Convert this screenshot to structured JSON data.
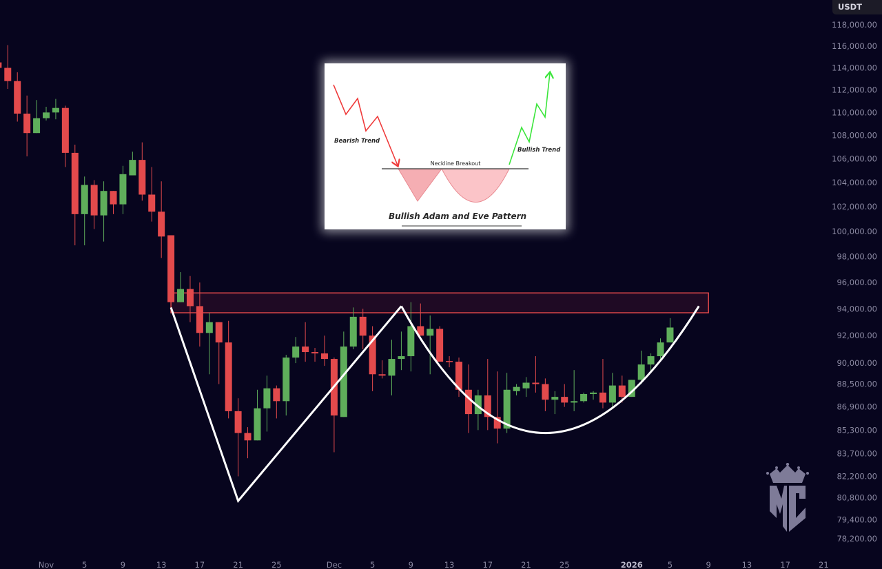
{
  "quote_currency": "USDT",
  "colors": {
    "background": "#07051e",
    "up": "#5fae5b",
    "down": "#e34a4c",
    "zone_border": "#e0484a",
    "zone_fill": "#1f0a24",
    "pattern_line": "#ffffff",
    "axis_text": "#8c8aa3",
    "logo": "#7e7b98"
  },
  "chart_data": {
    "type": "candlestick",
    "interval": "1D",
    "y_scale": "log",
    "ylim": [
      77500,
      119000
    ],
    "columns": [
      "date",
      "open",
      "high",
      "low",
      "close"
    ],
    "candles": [
      [
        "2025-10-27",
        114500,
        114600,
        113900,
        114000
      ],
      [
        "2025-10-28",
        114000,
        116100,
        112100,
        112800
      ],
      [
        "2025-10-29",
        112800,
        113600,
        109200,
        109900
      ],
      [
        "2025-10-30",
        109900,
        111500,
        106200,
        108200
      ],
      [
        "2025-10-31",
        108200,
        111100,
        108200,
        109500
      ],
      [
        "2025-11-01",
        109500,
        110500,
        109300,
        110000
      ],
      [
        "2025-11-02",
        110000,
        111200,
        109400,
        110400
      ],
      [
        "2025-11-03",
        110400,
        110600,
        105300,
        106500
      ],
      [
        "2025-11-04",
        106500,
        107200,
        98900,
        101400
      ],
      [
        "2025-11-05",
        101400,
        104500,
        98900,
        103800
      ],
      [
        "2025-11-06",
        103800,
        104200,
        100200,
        101300
      ],
      [
        "2025-11-07",
        101300,
        104100,
        99200,
        103300
      ],
      [
        "2025-11-08",
        103300,
        103300,
        101400,
        102200
      ],
      [
        "2025-11-09",
        102200,
        105400,
        101400,
        104700
      ],
      [
        "2025-11-10",
        104600,
        106600,
        104900,
        105900
      ],
      [
        "2025-11-11",
        105900,
        107400,
        102500,
        103000
      ],
      [
        "2025-11-12",
        103000,
        105300,
        100800,
        101600
      ],
      [
        "2025-11-13",
        101600,
        104100,
        97900,
        99600
      ],
      [
        "2025-11-14",
        99700,
        99700,
        94400,
        94500
      ],
      [
        "2025-11-15",
        94500,
        96800,
        94500,
        95500
      ],
      [
        "2025-11-16",
        95500,
        96500,
        93000,
        94200
      ],
      [
        "2025-11-17",
        94200,
        96000,
        91200,
        92200
      ],
      [
        "2025-11-18",
        92200,
        93700,
        89200,
        93000
      ],
      [
        "2025-11-19",
        93000,
        93000,
        88500,
        91500
      ],
      [
        "2025-11-20",
        91500,
        93100,
        86100,
        86600
      ],
      [
        "2025-11-21",
        86600,
        87500,
        82200,
        85100
      ],
      [
        "2025-11-22",
        85100,
        85500,
        83400,
        84600
      ],
      [
        "2025-11-23",
        84600,
        88100,
        84600,
        86800
      ],
      [
        "2025-11-24",
        86800,
        89100,
        85200,
        88200
      ],
      [
        "2025-11-25",
        88200,
        88400,
        86100,
        87300
      ],
      [
        "2025-11-26",
        87300,
        90600,
        86300,
        90400
      ],
      [
        "2025-11-27",
        90400,
        91900,
        90000,
        91200
      ],
      [
        "2025-11-28",
        91200,
        93000,
        90100,
        90800
      ],
      [
        "2025-11-29",
        90800,
        91100,
        90100,
        90700
      ],
      [
        "2025-11-30",
        90700,
        92000,
        89800,
        90300
      ],
      [
        "2025-12-01",
        90300,
        90400,
        83800,
        86300
      ],
      [
        "2025-12-02",
        86200,
        92300,
        86200,
        91200
      ],
      [
        "2025-12-03",
        91200,
        94100,
        91000,
        93400
      ],
      [
        "2025-12-04",
        93400,
        94000,
        91000,
        92000
      ],
      [
        "2025-12-05",
        92000,
        92700,
        88000,
        89200
      ],
      [
        "2025-12-06",
        89200,
        90200,
        88900,
        89100
      ],
      [
        "2025-12-07",
        89100,
        91700,
        87700,
        90300
      ],
      [
        "2025-12-08",
        90300,
        92300,
        89500,
        90500
      ],
      [
        "2025-12-09",
        90500,
        94500,
        89400,
        92700
      ],
      [
        "2025-12-10",
        92700,
        94400,
        92000,
        92000
      ],
      [
        "2025-12-11",
        92000,
        93500,
        89200,
        92500
      ],
      [
        "2025-12-12",
        92500,
        92700,
        90100,
        90100
      ],
      [
        "2025-12-13",
        90150,
        90500,
        89700,
        90100
      ],
      [
        "2025-12-14",
        90100,
        90400,
        87600,
        88100
      ],
      [
        "2025-12-15",
        88100,
        89900,
        85100,
        86400
      ],
      [
        "2025-12-16",
        86400,
        88100,
        85300,
        87700
      ],
      [
        "2025-12-17",
        87700,
        90300,
        85300,
        86200
      ],
      [
        "2025-12-18",
        86200,
        89400,
        84400,
        85400
      ],
      [
        "2025-12-19",
        85400,
        89300,
        85100,
        88100
      ],
      [
        "2025-12-20",
        88000,
        88500,
        87700,
        88300
      ],
      [
        "2025-12-21",
        88200,
        89000,
        87600,
        88600
      ],
      [
        "2025-12-22",
        88600,
        90500,
        87900,
        88500
      ],
      [
        "2025-12-23",
        88500,
        88900,
        86600,
        87400
      ],
      [
        "2025-12-24",
        87400,
        88000,
        86400,
        87600
      ],
      [
        "2025-12-25",
        87600,
        88500,
        86900,
        87200
      ],
      [
        "2025-12-26",
        87200,
        89500,
        86600,
        87300
      ],
      [
        "2025-12-27",
        87300,
        87900,
        87200,
        87800
      ],
      [
        "2025-12-28",
        87800,
        88000,
        87400,
        87900
      ],
      [
        "2025-12-29",
        87900,
        90300,
        86800,
        87200
      ],
      [
        "2025-12-30",
        87200,
        89300,
        86800,
        88400
      ],
      [
        "2025-12-31",
        88400,
        89100,
        87200,
        87600
      ],
      [
        "2026-01-01",
        87600,
        88800,
        87600,
        88800
      ],
      [
        "2026-01-02",
        88800,
        90900,
        88500,
        89900
      ],
      [
        "2026-01-03",
        89900,
        90700,
        89300,
        90500
      ],
      [
        "2026-01-04",
        90500,
        91800,
        90300,
        91500
      ],
      [
        "2026-01-05",
        91500,
        93300,
        91500,
        92600
      ]
    ],
    "y_tick_labels": [
      "118,000.00",
      "116,000.00",
      "114,000.00",
      "112,000.00",
      "110,000.00",
      "108,000.00",
      "106,000.00",
      "104,000.00",
      "102,000.00",
      "100,000.00",
      "98,000.00",
      "96,000.00",
      "94,000.00",
      "92,000.00",
      "90,000.00",
      "88,500.00",
      "86,900.00",
      "85,300.00",
      "83,700.00",
      "82,200.00",
      "80,800.00",
      "79,400.00",
      "78,200.00"
    ],
    "x_ticks": [
      {
        "label": "Nov",
        "date": "2025-11-01",
        "bold": false
      },
      {
        "label": "5",
        "date": "2025-11-05",
        "bold": false
      },
      {
        "label": "9",
        "date": "2025-11-09",
        "bold": false
      },
      {
        "label": "13",
        "date": "2025-11-13",
        "bold": false
      },
      {
        "label": "17",
        "date": "2025-11-17",
        "bold": false
      },
      {
        "label": "21",
        "date": "2025-11-21",
        "bold": false
      },
      {
        "label": "25",
        "date": "2025-11-25",
        "bold": false
      },
      {
        "label": "Dec",
        "date": "2025-12-01",
        "bold": false
      },
      {
        "label": "5",
        "date": "2025-12-05",
        "bold": false
      },
      {
        "label": "9",
        "date": "2025-12-09",
        "bold": false
      },
      {
        "label": "13",
        "date": "2025-12-13",
        "bold": false
      },
      {
        "label": "17",
        "date": "2025-12-17",
        "bold": false
      },
      {
        "label": "21",
        "date": "2025-12-21",
        "bold": false
      },
      {
        "label": "25",
        "date": "2025-12-25",
        "bold": false
      },
      {
        "label": "2026",
        "date": "2026-01-01",
        "bold": true
      },
      {
        "label": "5",
        "date": "2026-01-05",
        "bold": false
      },
      {
        "label": "9",
        "date": "2026-01-09",
        "bold": false
      },
      {
        "label": "13",
        "date": "2026-01-13",
        "bold": false
      },
      {
        "label": "17",
        "date": "2026-01-17",
        "bold": false
      },
      {
        "label": "21",
        "date": "2026-01-21",
        "bold": false
      }
    ],
    "annotations": {
      "resistance_zone": {
        "from": "2025-11-14",
        "to": "2026-01-09",
        "top": 95200,
        "bottom": 93700
      },
      "adam_v": [
        [
          "2025-11-14",
          94100
        ],
        [
          "2025-11-21",
          80600
        ],
        [
          "2025-12-08",
          94200
        ]
      ],
      "eve_curve": {
        "start": [
          "2025-12-08",
          94200
        ],
        "bottom": [
          "2025-12-23",
          85100
        ],
        "end": [
          "2026-01-08",
          94200
        ]
      }
    }
  },
  "inset": {
    "bearish_label": "Bearish Trend",
    "neckline_label": "Neckline Breakout",
    "bullish_label": "Bullish Trend",
    "title": "Bullish Adam and Eve Pattern"
  },
  "logo": {
    "text": "MC"
  }
}
